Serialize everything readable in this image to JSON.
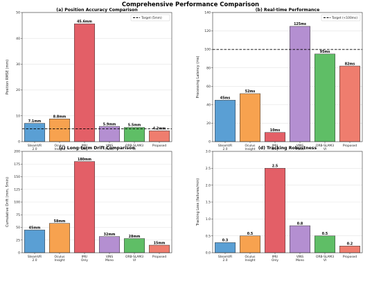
{
  "figure": {
    "title": "Comprehensive Performance Comparison"
  },
  "chart_data": [
    {
      "type": "bar",
      "title": "(a) Position Accuracy Comparison",
      "ylabel": "Position RMSE (mm)",
      "xlabel": "",
      "ylim": [
        0,
        50
      ],
      "yticks": [
        0,
        10,
        20,
        30,
        40,
        50
      ],
      "categories": [
        "SteamVR\n2.0",
        "Oculus\nInsight",
        "IMU\nOnly",
        "VINS\nMono",
        "ORB-SLAM3\nVI",
        "Proposed"
      ],
      "values": [
        7.1,
        8.8,
        45.6,
        5.9,
        5.5,
        4.2
      ],
      "data_labels": [
        "7.1mm",
        "8.8mm",
        "45.6mm",
        "5.9mm",
        "5.5mm",
        "4.2mm"
      ],
      "colors": [
        "#5a9fd4",
        "#f7a24f",
        "#e35f67",
        "#b48fd1",
        "#5fbe66",
        "#ef7d6e"
      ],
      "reference_line": {
        "value": 5,
        "label": "Target (5mm)"
      },
      "legend": "top-right",
      "grid": true
    },
    {
      "type": "bar",
      "title": "(b) Real-time Performance",
      "ylabel": "Processing Latency (ms)",
      "xlabel": "",
      "ylim": [
        0,
        140
      ],
      "yticks": [
        0,
        20,
        40,
        60,
        80,
        100,
        120,
        140
      ],
      "categories": [
        "SteamVR\n2.0",
        "Oculus\nInsight",
        "IMU\nOnly",
        "VINS\nMono",
        "ORB-SLAM3\nVI",
        "Proposed"
      ],
      "values": [
        45,
        52,
        10,
        125,
        95,
        82
      ],
      "data_labels": [
        "45ms",
        "52ms",
        "10ms",
        "125ms",
        "95ms",
        "82ms"
      ],
      "colors": [
        "#5a9fd4",
        "#f7a24f",
        "#e35f67",
        "#b48fd1",
        "#5fbe66",
        "#ef7d6e"
      ],
      "reference_line": {
        "value": 100,
        "label": "Target (<100ms)"
      },
      "legend": "top-right",
      "grid": true
    },
    {
      "type": "bar",
      "title": "(c) Long-term Drift Comparison",
      "ylabel": "Cumulative Drift (mm, 5min)",
      "xlabel": "",
      "ylim": [
        0,
        200
      ],
      "yticks": [
        0,
        25,
        50,
        75,
        100,
        125,
        150,
        175,
        200
      ],
      "categories": [
        "SteamVR\n2.0",
        "Oculus\nInsight",
        "IMU\nOnly",
        "VINS\nMono",
        "ORB-SLAM3\nVI",
        "Proposed"
      ],
      "values": [
        45,
        58,
        180,
        32,
        28,
        15
      ],
      "data_labels": [
        "45mm",
        "58mm",
        "180mm",
        "32mm",
        "28mm",
        "15mm"
      ],
      "colors": [
        "#5a9fd4",
        "#f7a24f",
        "#e35f67",
        "#b48fd1",
        "#5fbe66",
        "#ef7d6e"
      ],
      "grid": true
    },
    {
      "type": "bar",
      "title": "(d) Tracking Robustness",
      "ylabel": "Tracking Loss (failures/min)",
      "xlabel": "",
      "ylim": [
        0,
        3.0
      ],
      "yticks": [
        "0.0",
        "0.5",
        "1.0",
        "1.5",
        "2.0",
        "2.5",
        "3.0"
      ],
      "categories": [
        "SteamVR\n2.0",
        "Oculus\nInsight",
        "IMU\nOnly",
        "VINS\nMono",
        "ORB-SLAM3\nVI",
        "Proposed"
      ],
      "values": [
        0.3,
        0.5,
        2.5,
        0.8,
        0.5,
        0.2
      ],
      "data_labels": [
        "0.3",
        "0.5",
        "2.5",
        "0.8",
        "0.5",
        "0.2"
      ],
      "colors": [
        "#5a9fd4",
        "#f7a24f",
        "#e35f67",
        "#b48fd1",
        "#5fbe66",
        "#ef7d6e"
      ],
      "grid": true
    }
  ]
}
